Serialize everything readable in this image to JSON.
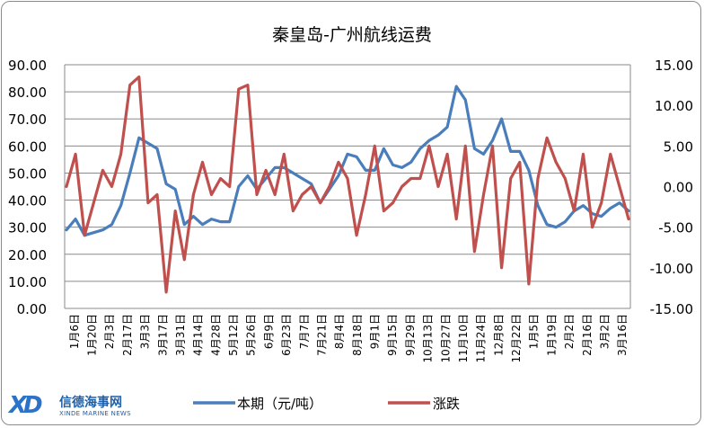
{
  "logo": {
    "mark": "XD",
    "name_cn": "信德海事网",
    "name_en": "XINDE MARINE NEWS"
  },
  "chart_data": {
    "type": "line",
    "title": "秦皇岛-广州航线运费",
    "left_axis": {
      "ylim": [
        0,
        90
      ],
      "ticks": [
        0,
        10,
        20,
        30,
        40,
        50,
        60,
        70,
        80,
        90
      ],
      "tick_labels": [
        "0.00",
        "10.00",
        "20.00",
        "30.00",
        "40.00",
        "50.00",
        "60.00",
        "70.00",
        "80.00",
        "90.00"
      ]
    },
    "right_axis": {
      "ylim": [
        -15,
        15
      ],
      "ticks": [
        -15,
        -10,
        -5,
        0,
        5,
        10,
        15
      ],
      "tick_labels": [
        "-15.00",
        "-10.00",
        "-5.00",
        "0.00",
        "5.00",
        "10.00",
        "15.00"
      ]
    },
    "x_labels": [
      "1月6日",
      "1月20日",
      "2月3日",
      "2月17日",
      "3月3日",
      "3月17日",
      "3月31日",
      "4月14日",
      "4月28日",
      "5月12日",
      "5月26日",
      "6月9日",
      "6月23日",
      "7月7日",
      "7月21日",
      "8月4日",
      "8月18日",
      "9月1日",
      "9月15日",
      "9月29日",
      "10月13日",
      "10月27日",
      "11月10日",
      "11月24日",
      "12月8日",
      "12月22日",
      "1月5日",
      "1月19日",
      "2月2日",
      "2月16日",
      "3月2日",
      "3月16日"
    ],
    "grid": true,
    "legend_position": "bottom",
    "series": [
      {
        "name": "本期（元/吨）",
        "axis": "left",
        "color": "#4a7ebb",
        "x": [
          0,
          1,
          2,
          3,
          4,
          5,
          6,
          7,
          8,
          9,
          10,
          11,
          12,
          13,
          14,
          15,
          16,
          17,
          18,
          19,
          20,
          21,
          22,
          23,
          24,
          25,
          26,
          27,
          28,
          29,
          30,
          31,
          32,
          33,
          34,
          35,
          36,
          37,
          38,
          39,
          40,
          41,
          42,
          43,
          44,
          45,
          46,
          47,
          48,
          49,
          50,
          51,
          52,
          53,
          54,
          55,
          56,
          57,
          58,
          59,
          60,
          61,
          62
        ],
        "values": [
          29,
          33,
          27,
          28,
          29,
          31,
          38,
          50,
          63,
          61,
          59,
          46,
          44,
          31,
          34,
          31,
          33,
          32,
          32,
          45,
          49,
          44,
          48,
          52,
          52,
          50,
          48,
          46,
          39,
          44,
          49,
          57,
          56,
          51,
          51,
          59,
          53,
          52,
          54,
          59,
          62,
          64,
          67,
          82,
          77,
          59,
          57,
          62,
          70,
          58,
          58,
          51,
          38,
          31,
          30,
          32,
          36,
          38,
          35,
          34,
          37,
          39,
          36
        ]
      },
      {
        "name": "涨跌",
        "axis": "right",
        "color": "#c0504d",
        "x": [
          0,
          1,
          2,
          3,
          4,
          5,
          6,
          7,
          8,
          9,
          10,
          11,
          12,
          13,
          14,
          15,
          16,
          17,
          18,
          19,
          20,
          21,
          22,
          23,
          24,
          25,
          26,
          27,
          28,
          29,
          30,
          31,
          32,
          33,
          34,
          35,
          36,
          37,
          38,
          39,
          40,
          41,
          42,
          43,
          44,
          45,
          46,
          47,
          48,
          49,
          50,
          51,
          52,
          53,
          54,
          55,
          56,
          57,
          58,
          59,
          60,
          61,
          62
        ],
        "values": [
          0,
          4,
          -6,
          -2,
          2,
          0,
          4,
          12.5,
          13.5,
          -2,
          -1,
          -13,
          -3,
          -9,
          -1,
          3,
          -1,
          1,
          0,
          12,
          12.5,
          -1,
          2,
          -1,
          4,
          -3,
          -1,
          0,
          -2,
          0,
          3,
          1,
          -6,
          -1,
          5,
          -3,
          -2,
          0,
          1,
          1,
          5,
          0,
          4,
          -4,
          5,
          -8,
          -1,
          5,
          -10,
          1,
          3,
          -12,
          1,
          6,
          3,
          1,
          -3,
          4,
          -5,
          -2,
          4,
          0,
          -4
        ]
      }
    ]
  }
}
